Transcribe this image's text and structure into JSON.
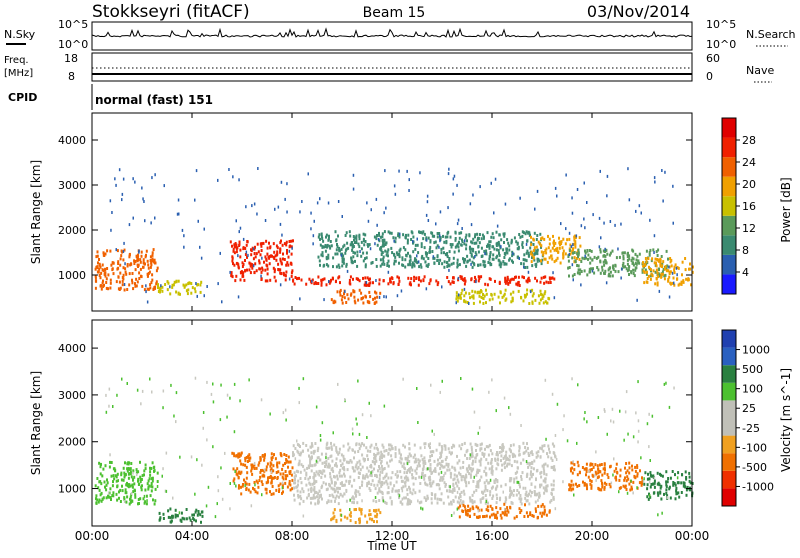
{
  "header": {
    "station": "Stokkseyri (fitACF)",
    "beam": "Beam 15",
    "date": "03/Nov/2014"
  },
  "noise_panel": {
    "left_label": "N.Sky",
    "left_ticks": [
      "10^5",
      "10^0"
    ],
    "right_label": "N.Search",
    "right_ticks": [
      "10^5",
      "10^0"
    ]
  },
  "freq_panel": {
    "left_label_1": "Freq.",
    "left_label_2": "[MHz]",
    "left_ticks": [
      "18",
      "8"
    ],
    "right_label": "Nave",
    "right_ticks": [
      "60",
      "0"
    ]
  },
  "cpid_panel": {
    "label": "CPID",
    "text": "normal (fast) 151"
  },
  "colors": {
    "power": [
      "#1a1aff",
      "#2a5fb0",
      "#3a8a70",
      "#5a9a5a",
      "#c8c000",
      "#f0a000",
      "#f06000",
      "#f02000",
      "#e00000"
    ],
    "velocity": [
      "#2040b0",
      "#2a60c0",
      "#2a8040",
      "#4cc030",
      "#c0c0b8",
      "#c0c0b8",
      "#f0a020",
      "#f07000",
      "#f03000",
      "#e00000"
    ],
    "velocity_ground": "#c8c8c0"
  },
  "x_axis": {
    "label": "Time UT",
    "ticks": [
      "00:00",
      "04:00",
      "08:00",
      "12:00",
      "16:00",
      "20:00",
      "00:00"
    ]
  },
  "chart_data": [
    {
      "type": "heatmap",
      "name": "power",
      "ylabel": "Slant Range [km]",
      "yticks": [
        1000,
        2000,
        3000,
        4000
      ],
      "ylim": [
        200,
        4600
      ],
      "xlim_hours": [
        0,
        24
      ],
      "colorbar_label": "Power [dB]",
      "colorbar_ticks": [
        4,
        8,
        12,
        16,
        20,
        24,
        28
      ],
      "colorbar_range": [
        0,
        30
      ],
      "regions": [
        {
          "t0": 0.1,
          "t1": 2.6,
          "r0": 700,
          "r1": 1600,
          "level": 22
        },
        {
          "t0": 2.6,
          "t1": 4.4,
          "r0": 600,
          "r1": 900,
          "level": 14
        },
        {
          "t0": 5.5,
          "t1": 8.0,
          "r0": 900,
          "r1": 1800,
          "level": 26
        },
        {
          "t0": 8.0,
          "t1": 18.5,
          "r0": 800,
          "r1": 1000,
          "level": 26
        },
        {
          "t0": 9.0,
          "t1": 18.0,
          "r0": 1200,
          "r1": 2000,
          "level": 8
        },
        {
          "t0": 9.5,
          "t1": 11.5,
          "r0": 400,
          "r1": 700,
          "level": 22
        },
        {
          "t0": 14.5,
          "t1": 18.3,
          "r0": 400,
          "r1": 700,
          "level": 16
        },
        {
          "t0": 17.5,
          "t1": 19.5,
          "r0": 1300,
          "r1": 1900,
          "level": 18
        },
        {
          "t0": 19.0,
          "t1": 23.0,
          "r0": 1000,
          "r1": 1600,
          "level": 10
        },
        {
          "t0": 22.0,
          "t1": 24.0,
          "r0": 800,
          "r1": 1400,
          "level": 18
        }
      ]
    },
    {
      "type": "heatmap",
      "name": "velocity",
      "ylabel": "Slant Range [km]",
      "yticks": [
        1000,
        2000,
        3000,
        4000
      ],
      "ylim": [
        200,
        4600
      ],
      "xlim_hours": [
        0,
        24
      ],
      "colorbar_label": "Velocity [m s^-1]",
      "colorbar_ticks": [
        "1000",
        "500",
        "100",
        "25",
        "-25",
        "-100",
        "-500",
        "-1000"
      ],
      "regions": [
        {
          "t0": 0.1,
          "t1": 2.6,
          "r0": 700,
          "r1": 1600,
          "level": 100
        },
        {
          "t0": 2.6,
          "t1": 4.4,
          "r0": 300,
          "r1": 600,
          "level": 200
        },
        {
          "t0": 5.5,
          "t1": 8.0,
          "r0": 900,
          "r1": 1800,
          "level": -300
        },
        {
          "t0": 8.0,
          "t1": 18.5,
          "r0": 700,
          "r1": 2000,
          "level": 0
        },
        {
          "t0": 9.5,
          "t1": 11.5,
          "r0": 300,
          "r1": 600,
          "level": -200
        },
        {
          "t0": 14.5,
          "t1": 18.3,
          "r0": 400,
          "r1": 700,
          "level": -300
        },
        {
          "t0": 19.0,
          "t1": 22.0,
          "r0": 1000,
          "r1": 1600,
          "level": -400
        },
        {
          "t0": 22.0,
          "t1": 24.0,
          "r0": 800,
          "r1": 1400,
          "level": 300
        }
      ]
    }
  ]
}
